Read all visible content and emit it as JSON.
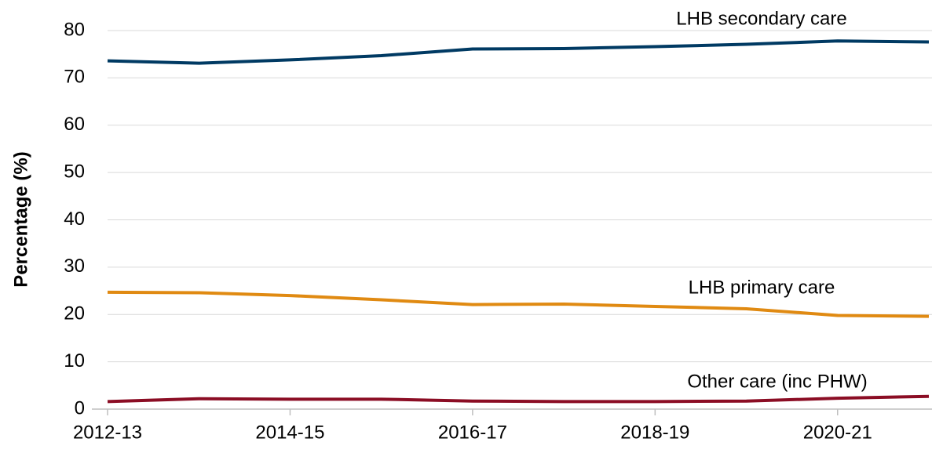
{
  "chart_data": {
    "type": "line",
    "y_label": "Percentage (%)",
    "categories": [
      "2012-13",
      null,
      "2014-15",
      null,
      "2016-17",
      null,
      "2018-19",
      null,
      "2020-21",
      null
    ],
    "series": [
      {
        "name": "LHB secondary care",
        "color": "#003a63",
        "values": [
          73.6,
          73.1,
          73.8,
          74.7,
          76.1,
          76.2,
          76.6,
          77.1,
          77.8,
          77.6
        ]
      },
      {
        "name": "LHB primary care",
        "color": "#e08a12",
        "values": [
          24.7,
          24.6,
          24.0,
          23.1,
          22.1,
          22.2,
          21.7,
          21.2,
          19.8,
          19.6
        ]
      },
      {
        "name": "Other care (inc PHW)",
        "color": "#8b0d24",
        "values": [
          1.6,
          2.2,
          2.1,
          2.1,
          1.7,
          1.6,
          1.6,
          1.7,
          2.3,
          2.7
        ]
      }
    ],
    "ylim": [
      0,
      80
    ],
    "yticks": [
      0,
      10,
      20,
      30,
      40,
      50,
      60,
      70,
      80
    ],
    "grid": true
  }
}
